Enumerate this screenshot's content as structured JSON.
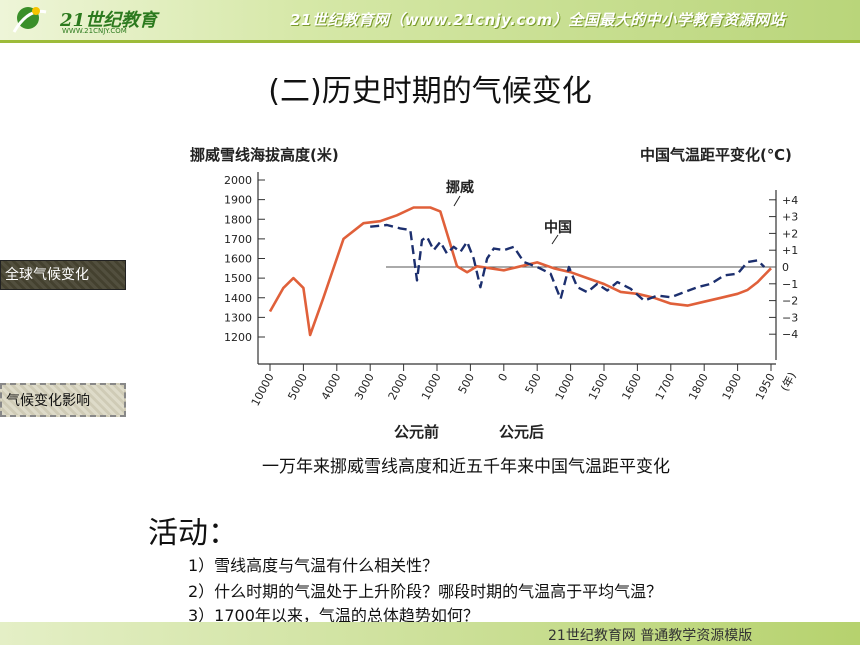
{
  "header": {
    "logo_text": "21世纪教育",
    "logo_sub": "WWW.21CNJY.COM",
    "slogan": "21世纪教育网（www.21cnjy.com）全国最大的中小学教育资源网站"
  },
  "slide": {
    "title": "(二)历史时期的气候变化",
    "caption": "一万年来挪威雪线高度和近五千年来中国气温距平变化",
    "activity_label": "活动：",
    "questions": [
      "1）雪线高度与气温有什么相关性？",
      "2）什么时期的气温处于上升阶段？哪段时期的气温高于平均气温？",
      "3）1700年以来，气温的总体趋势如何？"
    ]
  },
  "sidebar": {
    "btn_global": "全球气候变化",
    "btn_impact": "气候变化影响"
  },
  "footer": {
    "text": "21世纪教育网   普通教学资源模版"
  },
  "colors": {
    "norway_line": "#e0603a",
    "china_line": "#1c2f6e",
    "axis": "#333333"
  },
  "chart_data": {
    "type": "line",
    "ylabel_left": "挪威雪线海拔高度(米)",
    "ylabel_right": "中国气温距平变化(℃)",
    "x_ticks": [
      "10000",
      "5000",
      "4000",
      "3000",
      "2000",
      "1000",
      "500",
      "0",
      "500",
      "1000",
      "1500",
      "1600",
      "1700",
      "1800",
      "1900",
      "1950"
    ],
    "x_end_unit": "(年)",
    "era_bc": "公元前",
    "era_ad": "公元后",
    "y_left_ticks": [
      2000,
      1900,
      1800,
      1700,
      1600,
      1500,
      1400,
      1300,
      1200
    ],
    "y_left_range": [
      1200,
      2000
    ],
    "y_right_ticks": [
      "+4",
      "+3",
      "+2",
      "+1",
      "0",
      "−1",
      "−2",
      "−3",
      "−4"
    ],
    "y_right_range": [
      -4,
      4
    ],
    "series": [
      {
        "name": "挪威",
        "axis": "left",
        "x_index": [
          0,
          0.4,
          0.7,
          1.0,
          1.2,
          1.6,
          2.2,
          2.8,
          3.3,
          3.8,
          4.3,
          4.8,
          5.1,
          5.35,
          5.6,
          5.9,
          6.2,
          6.6,
          7.0,
          7.5,
          8.0,
          8.5,
          9.0,
          9.5,
          10.0,
          10.5,
          11.0,
          11.5,
          12.0,
          12.5,
          13.0,
          13.5,
          14.0,
          14.3,
          14.6,
          15.0
        ],
        "values": [
          1330,
          1450,
          1500,
          1450,
          1210,
          1400,
          1700,
          1780,
          1790,
          1820,
          1860,
          1860,
          1840,
          1700,
          1560,
          1530,
          1560,
          1550,
          1540,
          1560,
          1580,
          1550,
          1530,
          1500,
          1470,
          1430,
          1420,
          1400,
          1370,
          1360,
          1380,
          1400,
          1420,
          1440,
          1480,
          1550
        ]
      },
      {
        "name": "中国",
        "axis": "right",
        "x_index": [
          3.0,
          3.5,
          3.9,
          4.2,
          4.4,
          4.55,
          4.7,
          4.9,
          5.1,
          5.3,
          5.5,
          5.7,
          5.9,
          6.1,
          6.3,
          6.5,
          6.7,
          7.0,
          7.3,
          7.6,
          8.0,
          8.4,
          8.7,
          8.95,
          9.2,
          9.5,
          9.8,
          10.1,
          10.4,
          10.8,
          11.2,
          11.6,
          12.0,
          12.4,
          12.8,
          13.2,
          13.6,
          14.0,
          14.3,
          14.6,
          14.8
        ],
        "values": [
          2.4,
          2.5,
          2.3,
          2.2,
          -0.8,
          1.6,
          1.8,
          1.0,
          1.5,
          0.8,
          1.2,
          0.9,
          1.5,
          0.5,
          -1.2,
          0.5,
          1.1,
          1.0,
          1.2,
          0.3,
          0.0,
          -0.4,
          -1.9,
          0.0,
          -1.2,
          -1.5,
          -1.0,
          -1.4,
          -0.9,
          -1.3,
          -2.0,
          -1.7,
          -1.8,
          -1.5,
          -1.2,
          -1.0,
          -0.5,
          -0.4,
          0.3,
          0.4,
          0.0
        ]
      }
    ],
    "series_labels": [
      "挪威",
      "中国"
    ]
  }
}
